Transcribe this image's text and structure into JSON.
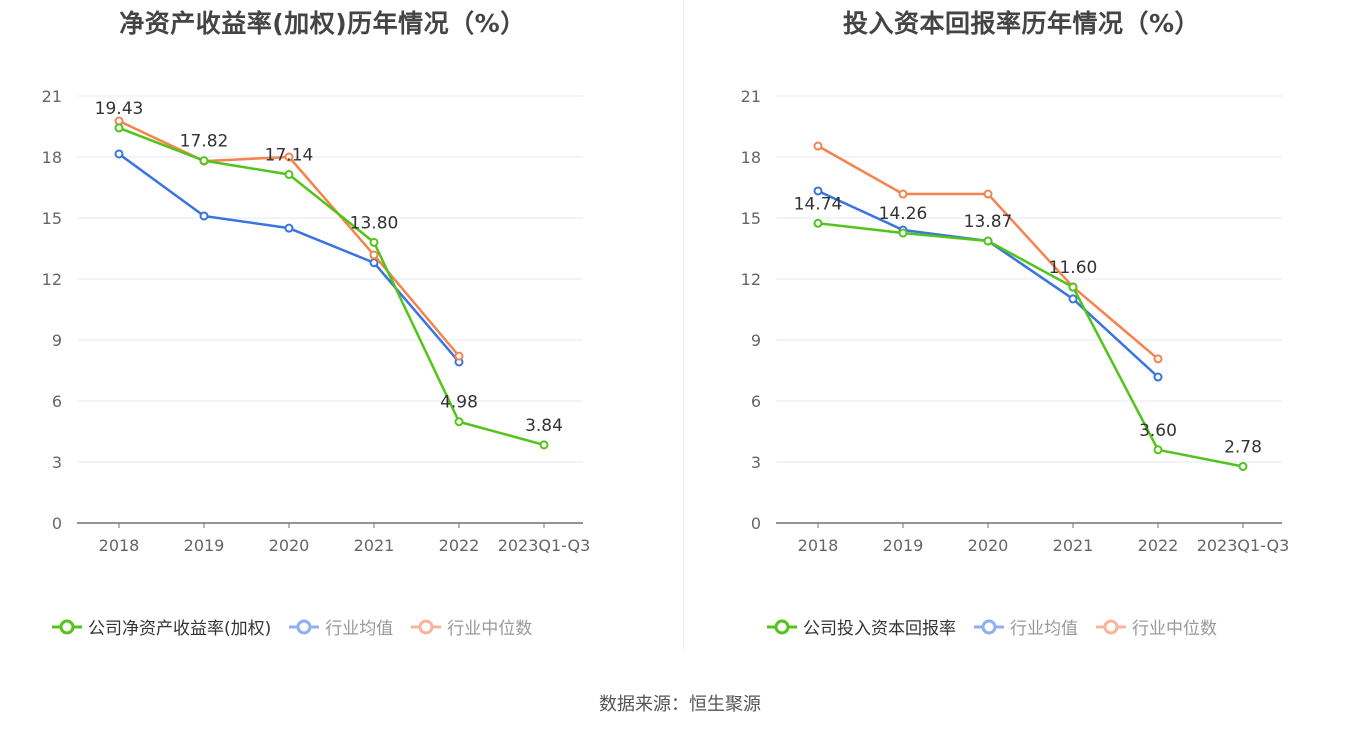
{
  "chart_data": [
    {
      "type": "line",
      "title": "净资产收益率(加权)历年情况（%）",
      "xlabel": "",
      "ylabel": "",
      "categories": [
        "2018",
        "2019",
        "2020",
        "2021",
        "2022",
        "2023Q1-Q3"
      ],
      "yticks": [
        "0",
        "3",
        "6",
        "9",
        "12",
        "15",
        "18",
        "21"
      ],
      "ylim": [
        0,
        21
      ],
      "grid": true,
      "legend_position": "bottom",
      "series": [
        {
          "name": "公司净资产收益率(加权)",
          "color": "#52c41a",
          "labels": true,
          "values": [
            19.43,
            17.82,
            17.14,
            13.8,
            4.98,
            3.84
          ],
          "value_labels": [
            "19.43",
            "17.82",
            "17.14",
            "13.80",
            "4.98",
            "3.84"
          ]
        },
        {
          "name": "行业均值",
          "color": "#3a74e0",
          "labels": false,
          "values": [
            18.15,
            15.1,
            14.5,
            12.8,
            7.92,
            null
          ]
        },
        {
          "name": "行业中位数",
          "color": "#f5834f",
          "labels": false,
          "values": [
            19.77,
            17.8,
            18.0,
            13.18,
            8.21,
            null
          ]
        }
      ]
    },
    {
      "type": "line",
      "title": "投入资本回报率历年情况（%）",
      "xlabel": "",
      "ylabel": "",
      "categories": [
        "2018",
        "2019",
        "2020",
        "2021",
        "2022",
        "2023Q1-Q3"
      ],
      "yticks": [
        "0",
        "3",
        "6",
        "9",
        "12",
        "15",
        "18",
        "21"
      ],
      "ylim": [
        0,
        21
      ],
      "grid": true,
      "legend_position": "bottom",
      "series": [
        {
          "name": "公司投入资本回报率",
          "color": "#52c41a",
          "labels": true,
          "values": [
            14.74,
            14.26,
            13.87,
            11.6,
            3.6,
            2.78
          ],
          "value_labels": [
            "14.74",
            "14.26",
            "13.87",
            "11.60",
            "3.60",
            "2.78"
          ]
        },
        {
          "name": "行业均值",
          "color": "#3a74e0",
          "labels": false,
          "values": [
            16.33,
            14.41,
            13.87,
            11.02,
            7.18,
            null
          ]
        },
        {
          "name": "行业中位数",
          "color": "#f5834f",
          "labels": false,
          "values": [
            18.54,
            16.18,
            16.18,
            11.61,
            8.07,
            null
          ]
        }
      ]
    }
  ],
  "legend_colors": {
    "company": "#52c41a",
    "avg": "#8fb0f0",
    "median": "#f9b49a"
  },
  "footer": {
    "source": "数据来源：恒生聚源"
  }
}
